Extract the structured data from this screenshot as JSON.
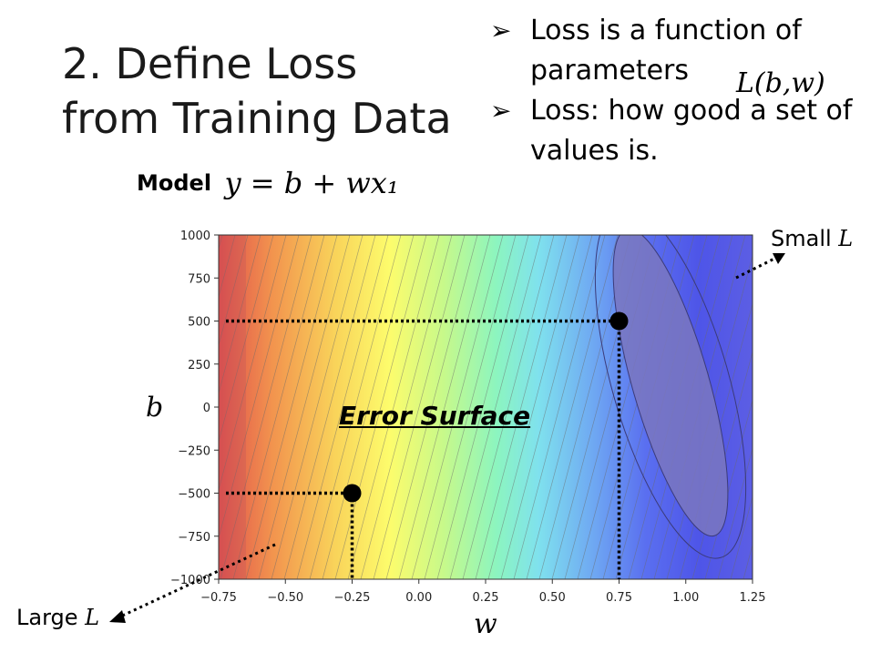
{
  "slide": {
    "title_line1": "2. Define Loss",
    "title_line2": "from Training Data",
    "bullets": [
      {
        "text": "Loss is a function of parameters"
      },
      {
        "text": "Loss: how good a set of values is."
      }
    ],
    "bullet_marker": "➢",
    "loss_expression": "L(b,w)",
    "model_label": "Model",
    "model_equation": "y = b + wx₁"
  },
  "annotations": {
    "small_label": "Small ",
    "large_label": "Large ",
    "L_symbol": "L",
    "surface_label": "Error Surface"
  },
  "chart_data": {
    "type": "contour",
    "xlabel": "w",
    "ylabel": "b",
    "xlim": [
      -0.75,
      1.25
    ],
    "ylim": [
      -1000,
      1000
    ],
    "x_ticks": [
      "−0.75",
      "−0.50",
      "−0.25",
      "0.00",
      "0.25",
      "0.50",
      "0.75",
      "1.00",
      "1.25"
    ],
    "y_ticks": [
      "1000",
      "750",
      "500",
      "250",
      "0",
      "−250",
      "−500",
      "−750",
      "−1000"
    ],
    "x_tick_values": [
      -0.75,
      -0.5,
      -0.25,
      0,
      0.25,
      0.5,
      0.75,
      1.0,
      1.25
    ],
    "y_tick_values": [
      1000,
      750,
      500,
      250,
      0,
      -250,
      -500,
      -750,
      -1000
    ],
    "points": [
      {
        "w": 0.75,
        "b": 500
      },
      {
        "w": -0.25,
        "b": -500
      }
    ],
    "colormap": "jet (red = large loss, blue = small loss)",
    "minimum_region": {
      "w": 1.0,
      "b": 100
    }
  }
}
